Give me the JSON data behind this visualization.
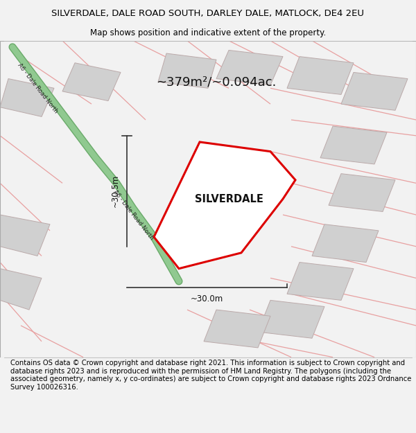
{
  "title": "SILVERDALE, DALE ROAD SOUTH, DARLEY DALE, MATLOCK, DE4 2EU",
  "subtitle": "Map shows position and indicative extent of the property.",
  "footer": "Contains OS data © Crown copyright and database right 2021. This information is subject to Crown copyright and database rights 2023 and is reproduced with the permission of HM Land Registry. The polygons (including the associated geometry, namely x, y co-ordinates) are subject to Crown copyright and database rights 2023 Ordnance Survey 100026316.",
  "area_label": "~379m²/~0.094ac.",
  "property_name": "SILVERDALE",
  "dim_v": "~30.5m",
  "dim_h": "~30.0m",
  "road_label": "A6 - Dale Road North",
  "bg_color": "#f2f2f2",
  "map_bg": "#f8f8f8",
  "road_green_color": "#90c990",
  "road_green_edge": "#6aaa6a",
  "property_outline_color": "#dd0000",
  "property_fill": "#ffffff",
  "building_fill": "#d0d0d0",
  "building_edge": "#bbaaaa",
  "road_line_color": "#e8a0a0",
  "dim_line_color": "#333333",
  "title_fontsize": 9.5,
  "subtitle_fontsize": 8.5,
  "footer_fontsize": 7.2,
  "map_border_color": "#aaaaaa"
}
